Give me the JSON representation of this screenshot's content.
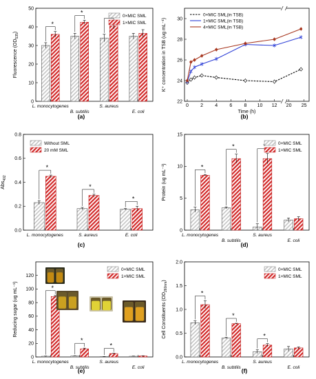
{
  "chart_data": [
    {
      "panel": "(a)",
      "type": "bar",
      "ylabel": "Fluorescence (OD",
      "ylabel_sub": "535",
      "ylabel_end": ")",
      "ylim": [
        0,
        50
      ],
      "yticks": [
        0,
        10,
        20,
        30,
        40,
        50
      ],
      "categories": [
        "L. monocytogenes",
        "B. subtilis",
        "S. aureus",
        "E. coli"
      ],
      "series": [
        {
          "name": "0×MIC SML",
          "values": [
            30,
            35,
            34,
            35
          ],
          "errors": [
            1.5,
            1.5,
            2,
            1.5
          ],
          "color": "#c8c8c8"
        },
        {
          "name": "1×MIC SML",
          "values": [
            36,
            42.5,
            40.5,
            36.5
          ],
          "errors": [
            1.5,
            1,
            1.5,
            2
          ],
          "color": "#d22828"
        }
      ],
      "significant": [
        "*",
        "*",
        "*",
        ""
      ],
      "legend": "top-right"
    },
    {
      "panel": "(b)",
      "type": "line",
      "ylabel": "K⁺ concentration in TSB (ug mL⁻¹)",
      "xlabel": "Time (h)",
      "xticks_left": [
        0,
        2,
        4,
        6,
        8,
        10,
        12
      ],
      "xticks_right": [
        20,
        25
      ],
      "ylim": [
        22,
        31
      ],
      "yticks": [
        22,
        24,
        26,
        28,
        30
      ],
      "series": [
        {
          "name": "0×MIC SML(in TSB)",
          "color": "#000000",
          "dashed": true,
          "x": [
            0,
            0.5,
            1,
            2,
            4,
            8,
            12,
            24
          ],
          "y": [
            23.8,
            24.1,
            24.3,
            24.5,
            24.3,
            24.0,
            23.9,
            25.1
          ]
        },
        {
          "name": "1×MIC SML(in TSB)",
          "color": "#2a3cd6",
          "dashed": false,
          "x": [
            0,
            0.5,
            1,
            2,
            4,
            8,
            12,
            24
          ],
          "y": [
            23.9,
            24.9,
            25.3,
            25.6,
            26.1,
            27.5,
            27.4,
            28.2
          ]
        },
        {
          "name": "4×MIC SML(in TSB)",
          "color": "#a6341c",
          "dashed": false,
          "x": [
            0,
            0.5,
            1,
            2,
            4,
            8,
            12,
            24
          ],
          "y": [
            24.0,
            25.8,
            26.0,
            26.4,
            27.0,
            27.6,
            28.0,
            29.0
          ]
        }
      ],
      "legend": "top-left"
    },
    {
      "panel": "(c)",
      "type": "bar",
      "ylabel": "Abs",
      "ylabel_sub": "402",
      "ylim": [
        0,
        0.8
      ],
      "yticks": [
        "0.0",
        "0.2",
        "0.4",
        "0.6",
        "0.8"
      ],
      "categories": [
        "L. monocytogenes",
        "S. aureus",
        "E. coli"
      ],
      "series": [
        {
          "name": "Without SML",
          "values": [
            0.23,
            0.18,
            0.175
          ],
          "errors": [
            0.015,
            0.01,
            0.005
          ],
          "color": "#c8c8c8"
        },
        {
          "name": "20 mM SML",
          "values": [
            0.45,
            0.29,
            0.18
          ],
          "errors": [
            0.01,
            0.01,
            0.02
          ],
          "color": "#d22828"
        }
      ],
      "significant": [
        "*",
        "*",
        "*"
      ],
      "legend": "top-left"
    },
    {
      "panel": "(d)",
      "type": "bar",
      "ylabel": "Protein (ug mL⁻¹)",
      "ylim": [
        0,
        15
      ],
      "yticks": [
        0,
        5,
        10,
        15
      ],
      "categories": [
        "L. monocytogenes",
        "B. subtilis",
        "S. aureus",
        "E. coli"
      ],
      "series": [
        {
          "name": "0×MIC SML",
          "values": [
            3.2,
            3.5,
            0.5,
            1.6
          ],
          "errors": [
            0.4,
            0.15,
            0.5,
            0.3
          ],
          "color": "#c8c8c8"
        },
        {
          "name": "1×MIC SML",
          "values": [
            8.6,
            11.2,
            11.2,
            1.8
          ],
          "errors": [
            0.1,
            0.7,
            0.8,
            0.3
          ],
          "color": "#d22828"
        }
      ],
      "significant": [
        "*",
        "*",
        "*",
        ""
      ],
      "legend": "top-right"
    },
    {
      "panel": "(e)",
      "type": "bar",
      "ylabel": "Reducing sugar (ug mL⁻¹)",
      "ylim": [
        0,
        140
      ],
      "yticks": [
        0,
        20,
        40,
        60,
        80,
        100,
        120
      ],
      "categories": [
        "L. monocytogenes",
        "B. subtilis",
        "S. aureus",
        "E. coli"
      ],
      "series": [
        {
          "name": "0×MIC SML",
          "values": [
            1,
            1.5,
            0.5,
            1
          ],
          "errors": [
            0.3,
            0.3,
            0.2,
            0.3
          ],
          "color": "#c8c8c8"
        },
        {
          "name": "1×MIC SML",
          "values": [
            89,
            12,
            5,
            1.5
          ],
          "errors": [
            1.5,
            1,
            0.5,
            0.3
          ],
          "color": "#d22828"
        }
      ],
      "significant": [
        "*",
        "*",
        "*",
        ""
      ],
      "legend": "top-right"
    },
    {
      "panel": "(f)",
      "type": "bar",
      "ylabel": "Cell Constituents (OD",
      "ylabel_sub": "260nm",
      "ylabel_end": ")",
      "ylim": [
        0,
        2.0
      ],
      "yticks": [
        "0.0",
        "0.5",
        "1.0",
        "1.5",
        "2.0"
      ],
      "categories": [
        "L. monocytogenes",
        "B. subtilis",
        "S. aureus",
        "E. coli"
      ],
      "series": [
        {
          "name": "0×MIC SML",
          "values": [
            0.72,
            0.4,
            0.11,
            0.17
          ],
          "errors": [
            0.04,
            0.01,
            0.04,
            0.05
          ],
          "color": "#c8c8c8"
        },
        {
          "name": "1×MIC SML",
          "values": [
            1.1,
            0.7,
            0.25,
            0.19
          ],
          "errors": [
            0.08,
            0.01,
            0.03,
            0.02
          ],
          "color": "#d22828"
        }
      ],
      "significant": [
        "*",
        "*",
        "*",
        ""
      ],
      "legend": "top-right"
    }
  ]
}
